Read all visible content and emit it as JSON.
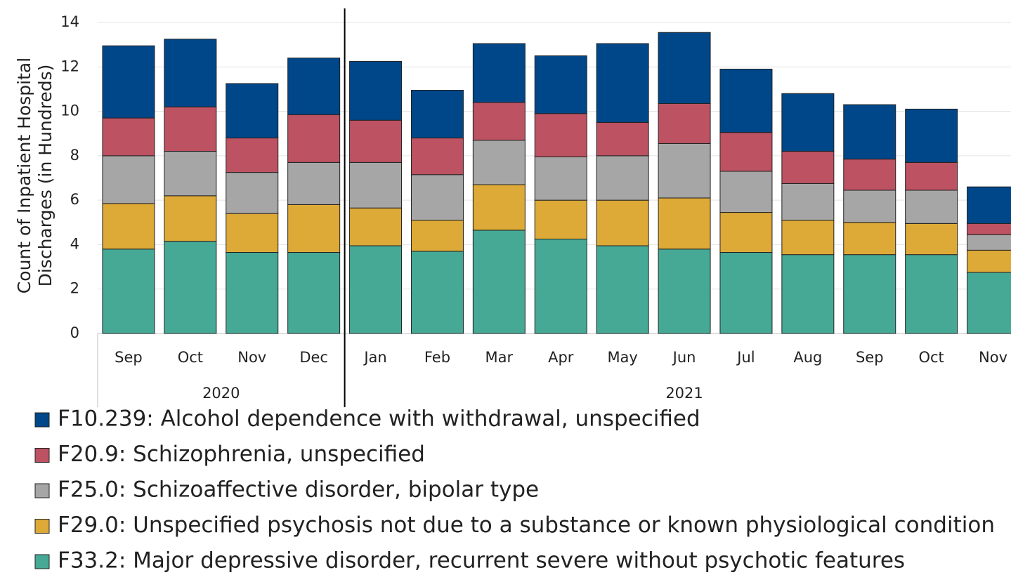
{
  "chart_data": {
    "type": "stacked-bar",
    "y_label": [
      "Count of Inpatient Hospital",
      "Discharges (in Hundreds)"
    ],
    "groups": [
      {
        "label": "2020",
        "categories": [
          "Sep",
          "Oct",
          "Nov",
          "Dec"
        ]
      },
      {
        "label": "2021",
        "categories": [
          "Jan",
          "Feb",
          "Mar",
          "Apr",
          "May",
          "Jun",
          "Jul",
          "Aug",
          "Sep",
          "Oct",
          "Nov"
        ]
      }
    ],
    "series": [
      {
        "name": "F33.2: Major depressive disorder, recurrent severe without psychotic features",
        "color": "#45a996",
        "values": [
          3.8,
          4.15,
          3.65,
          3.65,
          3.95,
          3.7,
          4.65,
          4.25,
          3.95,
          3.8,
          3.65,
          3.55,
          3.55,
          3.55,
          2.75
        ]
      },
      {
        "name": "F29.0: Unspecified psychosis not due to a substance or known physiological condition",
        "color": "#dda937",
        "values": [
          2.05,
          2.05,
          1.75,
          2.15,
          1.7,
          1.4,
          2.05,
          1.75,
          2.05,
          2.3,
          1.8,
          1.55,
          1.45,
          1.4,
          1.0
        ]
      },
      {
        "name": "F25.0: Schizoaffective disorder, bipolar type",
        "color": "#a6a6a6",
        "values": [
          2.15,
          2.0,
          1.85,
          1.9,
          2.05,
          2.05,
          2.0,
          1.95,
          2.0,
          2.45,
          1.85,
          1.65,
          1.45,
          1.5,
          0.7
        ]
      },
      {
        "name": "F20.9: Schizophrenia, unspecified",
        "color": "#bc5262",
        "values": [
          1.7,
          2.0,
          1.55,
          2.15,
          1.9,
          1.65,
          1.7,
          1.95,
          1.5,
          1.8,
          1.75,
          1.45,
          1.4,
          1.25,
          0.5
        ]
      },
      {
        "name": "F10.239: Alcohol dependence with withdrawal, unspecified",
        "color": "#004789",
        "values": [
          3.25,
          3.05,
          2.45,
          2.55,
          2.65,
          2.15,
          2.65,
          2.6,
          3.55,
          3.2,
          2.85,
          2.6,
          2.45,
          2.4,
          1.65
        ]
      }
    ],
    "ylim": [
      0,
      14
    ],
    "yticks": [
      0,
      2,
      4,
      6,
      8,
      10,
      12,
      14
    ],
    "grid": true
  }
}
